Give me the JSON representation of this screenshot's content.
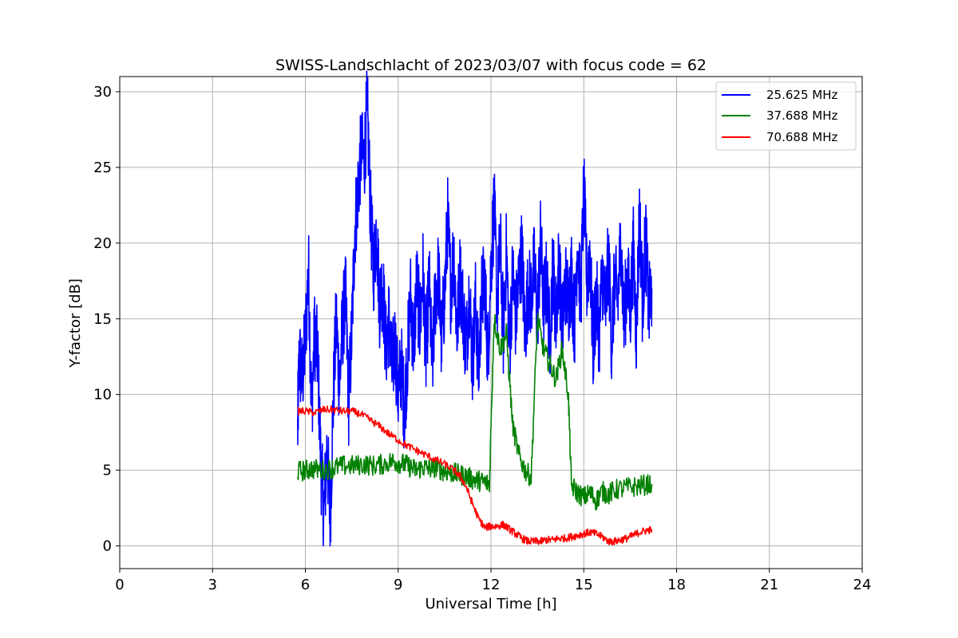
{
  "chart_data": {
    "type": "line",
    "title": "SWISS-Landschlacht of 2023/03/07 with focus code = 62",
    "xlabel": "Universal Time [h]",
    "ylabel": "Y-factor [dB]",
    "xlim": [
      0,
      24
    ],
    "ylim": [
      -1.5,
      31
    ],
    "xticks": [
      0,
      3,
      6,
      9,
      12,
      15,
      18,
      21,
      24
    ],
    "yticks": [
      0,
      5,
      10,
      15,
      20,
      25,
      30
    ],
    "grid": true,
    "legend_position": "top-right",
    "series": [
      {
        "name": "25.625 MHz",
        "color": "#0000ff",
        "x": [
          5.75,
          5.8,
          5.9,
          6.0,
          6.1,
          6.2,
          6.3,
          6.4,
          6.5,
          6.6,
          6.7,
          6.8,
          6.9,
          7.0,
          7.1,
          7.2,
          7.3,
          7.4,
          7.5,
          7.6,
          7.7,
          7.8,
          7.9,
          8.0,
          8.1,
          8.2,
          8.3,
          8.4,
          8.5,
          8.6,
          8.7,
          8.8,
          8.9,
          9.0,
          9.1,
          9.2,
          9.3,
          9.4,
          9.5,
          9.6,
          9.7,
          9.8,
          9.9,
          10.0,
          10.1,
          10.2,
          10.3,
          10.4,
          10.5,
          10.6,
          10.7,
          10.8,
          10.9,
          11.0,
          11.1,
          11.2,
          11.3,
          11.4,
          11.5,
          11.6,
          11.7,
          11.8,
          11.9,
          12.0,
          12.1,
          12.2,
          12.3,
          12.4,
          12.5,
          12.6,
          12.7,
          12.8,
          12.9,
          13.0,
          13.1,
          13.2,
          13.3,
          13.4,
          13.5,
          13.6,
          13.7,
          13.8,
          13.9,
          14.0,
          14.1,
          14.2,
          14.3,
          14.4,
          14.5,
          14.6,
          14.7,
          14.8,
          14.9,
          15.0,
          15.1,
          15.2,
          15.3,
          15.4,
          15.5,
          15.6,
          15.7,
          15.8,
          15.9,
          16.0,
          16.1,
          16.2,
          16.3,
          16.4,
          16.5,
          16.6,
          16.7,
          16.8,
          16.9,
          17.0,
          17.1,
          17.2
        ],
        "y": [
          7.5,
          12.5,
          11.0,
          13.5,
          18.5,
          9.0,
          14.0,
          12.5,
          5.5,
          2.0,
          6.5,
          1.5,
          9.5,
          15.0,
          10.5,
          14.5,
          16.5,
          9.5,
          14.0,
          21.0,
          23.5,
          26.0,
          25.5,
          29.0,
          22.5,
          18.0,
          21.0,
          16.0,
          17.5,
          13.0,
          15.0,
          11.5,
          13.5,
          10.0,
          12.0,
          9.0,
          12.5,
          16.5,
          13.0,
          17.5,
          14.5,
          18.0,
          12.5,
          17.5,
          11.5,
          16.5,
          18.0,
          13.5,
          16.5,
          21.5,
          17.0,
          19.5,
          14.0,
          18.0,
          15.5,
          13.0,
          17.0,
          12.0,
          16.0,
          11.5,
          16.5,
          17.5,
          12.5,
          18.5,
          22.5,
          16.0,
          20.0,
          14.0,
          19.5,
          13.0,
          18.0,
          15.0,
          17.5,
          19.5,
          14.0,
          17.0,
          16.5,
          18.5,
          15.0,
          20.0,
          16.0,
          17.5,
          13.5,
          18.5,
          15.0,
          19.0,
          14.0,
          17.5,
          16.0,
          18.0,
          14.5,
          20.5,
          16.0,
          23.5,
          17.5,
          19.5,
          13.0,
          16.5,
          14.0,
          18.0,
          15.5,
          19.0,
          13.5,
          17.5,
          16.0,
          20.5,
          14.5,
          18.0,
          15.5,
          19.5,
          14.0,
          22.0,
          16.0,
          20.5,
          15.5,
          17.0
        ],
        "amp": 3.0
      },
      {
        "name": "37.688 MHz",
        "color": "#008000",
        "x": [
          5.75,
          6.0,
          6.2,
          6.5,
          6.8,
          7.0,
          7.3,
          7.6,
          7.9,
          8.2,
          8.5,
          8.8,
          9.0,
          9.2,
          9.4,
          9.6,
          9.8,
          10.0,
          10.2,
          10.4,
          10.6,
          10.8,
          11.0,
          11.2,
          11.4,
          11.6,
          11.8,
          11.95,
          12.1,
          12.3,
          12.5,
          12.7,
          12.9,
          13.1,
          13.3,
          13.5,
          13.7,
          13.9,
          14.1,
          14.3,
          14.5,
          14.6,
          14.8,
          15.0,
          15.2,
          15.4,
          15.6,
          15.8,
          16.0,
          16.3,
          16.6,
          16.9,
          17.2
        ],
        "y": [
          4.9,
          5.0,
          5.1,
          5.0,
          5.1,
          5.2,
          5.3,
          5.3,
          5.4,
          5.3,
          5.4,
          5.6,
          5.5,
          5.4,
          5.2,
          5.0,
          5.2,
          5.1,
          5.2,
          5.0,
          4.9,
          4.8,
          4.7,
          4.6,
          4.4,
          4.3,
          4.2,
          4.1,
          15.0,
          13.0,
          14.0,
          8.0,
          6.0,
          5.0,
          4.5,
          15.0,
          13.0,
          12.0,
          11.0,
          13.0,
          10.0,
          4.0,
          3.5,
          3.2,
          3.5,
          3.0,
          3.6,
          3.4,
          3.7,
          3.8,
          3.9,
          4.0,
          4.1
        ],
        "amp": 0.7
      },
      {
        "name": "70.688 MHz",
        "color": "#ff0000",
        "x": [
          5.75,
          6.0,
          6.3,
          6.6,
          6.9,
          7.2,
          7.5,
          7.8,
          8.1,
          8.4,
          8.7,
          9.0,
          9.3,
          9.6,
          9.9,
          10.2,
          10.5,
          10.8,
          11.0,
          11.2,
          11.4,
          11.6,
          11.8,
          12.0,
          12.2,
          12.4,
          12.6,
          12.8,
          13.0,
          13.2,
          13.4,
          13.6,
          13.8,
          14.0,
          14.2,
          14.4,
          14.6,
          14.8,
          15.0,
          15.2,
          15.4,
          15.6,
          15.8,
          16.0,
          16.2,
          16.4,
          16.6,
          16.8,
          17.0,
          17.2
        ],
        "y": [
          8.9,
          8.9,
          8.8,
          9.0,
          9.0,
          8.9,
          8.9,
          8.7,
          8.3,
          7.9,
          7.4,
          7.0,
          6.6,
          6.3,
          6.0,
          5.7,
          5.4,
          5.0,
          4.6,
          3.9,
          2.8,
          1.8,
          1.2,
          1.3,
          1.3,
          1.4,
          1.1,
          0.8,
          0.5,
          0.3,
          0.3,
          0.3,
          0.4,
          0.4,
          0.5,
          0.5,
          0.6,
          0.7,
          0.8,
          0.9,
          0.8,
          0.6,
          0.3,
          0.3,
          0.4,
          0.5,
          0.7,
          0.9,
          1.0,
          1.1
        ],
        "amp": 0.25
      }
    ]
  }
}
